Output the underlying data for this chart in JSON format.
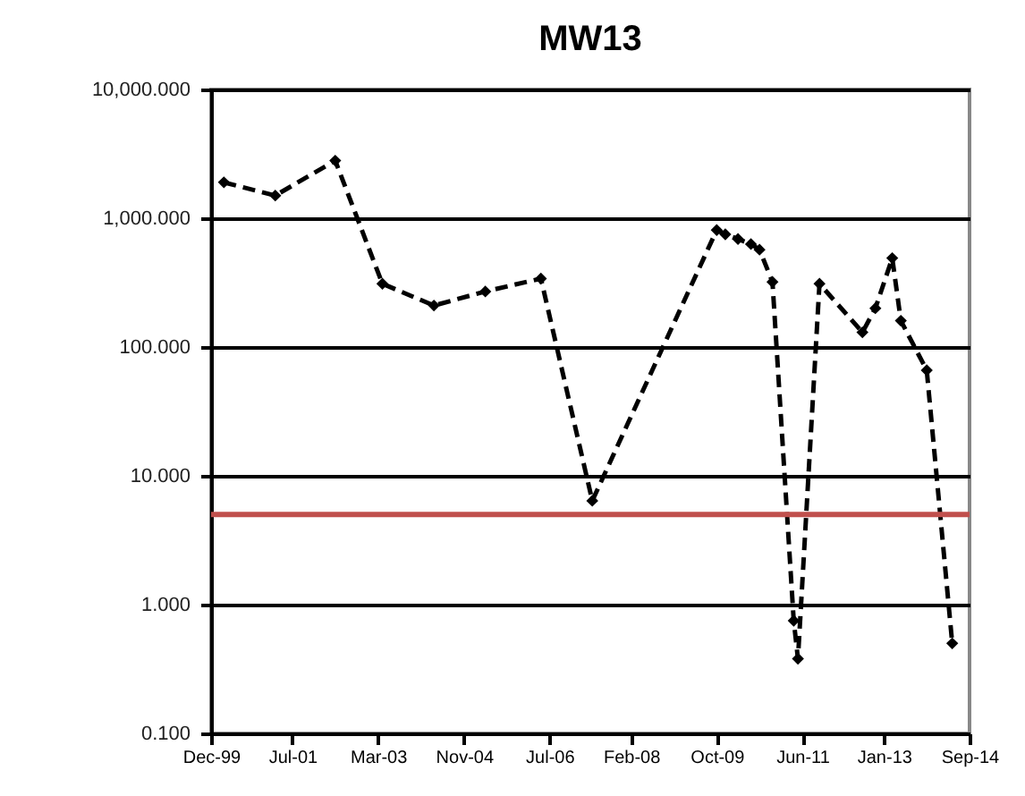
{
  "chart_data": {
    "type": "line",
    "title": "MW13",
    "x": [
      "2000-03",
      "2001-03",
      "2002-05",
      "2003-04",
      "2004-04",
      "2005-04",
      "2006-05",
      "2007-05",
      "2009-10",
      "2009-12",
      "2010-03",
      "2010-06",
      "2010-08",
      "2010-11",
      "2011-04",
      "2011-05",
      "2011-10",
      "2012-08",
      "2012-11",
      "2013-03",
      "2013-05",
      "2013-11",
      "2014-05"
    ],
    "series": [
      {
        "color": "#000000",
        "values": [
          1900,
          1500,
          2800,
          310,
          210,
          270,
          340,
          6.4,
          810,
          750,
          690,
          630,
          570,
          320,
          0.75,
          0.38,
          310,
          130,
          200,
          490,
          160,
          66,
          0.5
        ]
      }
    ],
    "log": "y",
    "ylim": [
      0.1,
      10000
    ],
    "yticks": [
      {
        "value": 0.1,
        "label": "0.100"
      },
      {
        "value": 1,
        "label": "1.000"
      },
      {
        "value": 10,
        "label": "10.000"
      },
      {
        "value": 100,
        "label": "100.000"
      },
      {
        "value": 1000,
        "label": "1,000.000"
      },
      {
        "value": 10000,
        "label": "10,000.000"
      }
    ],
    "xlim": [
      "1999-12",
      "2014-09"
    ],
    "xticks": [
      {
        "value": "1999-12",
        "label": "Dec-99"
      },
      {
        "value": "2001-07",
        "label": "Jul-01"
      },
      {
        "value": "2003-03",
        "label": "Mar-03"
      },
      {
        "value": "2004-11",
        "label": "Nov-04"
      },
      {
        "value": "2006-07",
        "label": "Jul-06"
      },
      {
        "value": "2008-02",
        "label": "Feb-08"
      },
      {
        "value": "2009-10",
        "label": "Oct-09"
      },
      {
        "value": "2011-06",
        "label": "Jun-11"
      },
      {
        "value": "2013-01",
        "label": "Jan-13"
      },
      {
        "value": "2014-09",
        "label": "Sep-14"
      }
    ],
    "ref_lines": [
      {
        "axis": "y",
        "value": 5,
        "color": "#c0504d"
      }
    ],
    "grid": "y",
    "marker": "diamond",
    "line_style": "dashed"
  }
}
